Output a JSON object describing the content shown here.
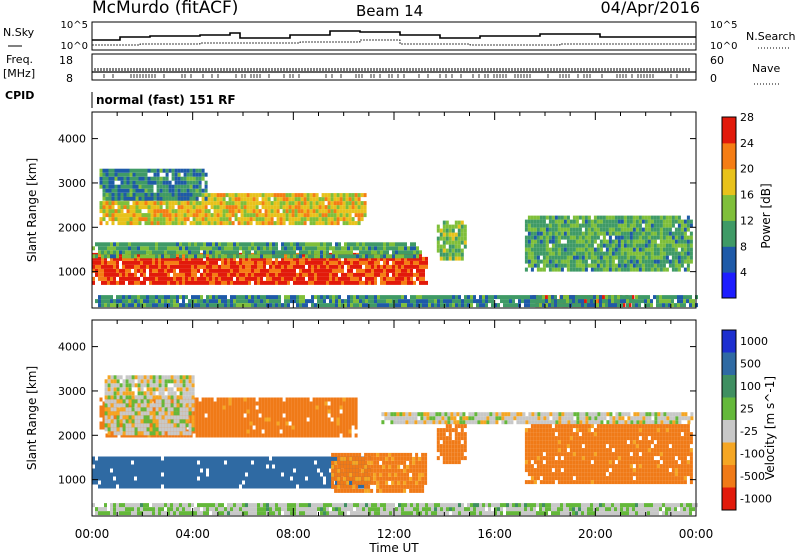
{
  "header": {
    "title": "McMurdo (fitACF)",
    "beam": "Beam 14",
    "date": "04/Apr/2016"
  },
  "panels": {
    "nsky": {
      "label": "N.Sky",
      "ticks": [
        "10^5",
        "10^0"
      ]
    },
    "nsearch": {
      "label": "N.Search",
      "ticks": [
        "10^5",
        "10^0"
      ]
    },
    "freq": {
      "label_line1": "Freq.",
      "label_line2": "[MHz]",
      "ticks": [
        "18",
        "8"
      ]
    },
    "nave": {
      "label": "Nave",
      "ticks": [
        "60",
        "0"
      ]
    },
    "cpid": {
      "label": "CPID",
      "value": "normal (fast) 151 RF"
    }
  },
  "chart_data": [
    {
      "type": "heatmap",
      "title": "",
      "xlabel": "Time UT",
      "ylabel": "Slant Range [km]",
      "x_ticks": [
        "00:00",
        "04:00",
        "08:00",
        "12:00",
        "16:00",
        "20:00",
        "00:00"
      ],
      "xlim_hours": [
        0,
        24
      ],
      "y_ticks": [
        1000,
        2000,
        3000,
        4000
      ],
      "ylim": [
        180,
        4600
      ],
      "colorbar": {
        "label": "Power [dB]",
        "tick_labels": [
          "4",
          "8",
          "12",
          "16",
          "20",
          "24",
          "28"
        ],
        "range": [
          0,
          30
        ],
        "colors": [
          "#1d1dff",
          "#1e5aa8",
          "#3f9a66",
          "#7fbf3a",
          "#e8c21b",
          "#f57d14",
          "#e21a0b"
        ]
      },
      "regions": [
        {
          "t0": 0.0,
          "t1": 13.3,
          "r0": 700,
          "r1": 1400,
          "value": 27
        },
        {
          "t0": 0.0,
          "t1": 13.0,
          "r0": 1300,
          "r1": 1650,
          "value": 12
        },
        {
          "t0": 0.3,
          "t1": 10.8,
          "r0": 2050,
          "r1": 2700,
          "value": 19
        },
        {
          "t0": 0.3,
          "t1": 4.5,
          "r0": 2600,
          "r1": 3300,
          "value": 9
        },
        {
          "t0": 13.7,
          "t1": 14.8,
          "r0": 1250,
          "r1": 2150,
          "value": 14
        },
        {
          "t0": 17.2,
          "t1": 23.8,
          "r0": 1000,
          "r1": 2200,
          "value": 12
        },
        {
          "t0": 17.5,
          "t1": 21.5,
          "r0": 200,
          "r1": 420,
          "value": 28
        },
        {
          "t0": 0.0,
          "t1": 24.0,
          "r0": 200,
          "r1": 420,
          "value": 10
        }
      ]
    },
    {
      "type": "heatmap",
      "title": "",
      "xlabel": "Time UT",
      "ylabel": "Slant Range [km]",
      "x_ticks": [
        "00:00",
        "04:00",
        "08:00",
        "12:00",
        "16:00",
        "20:00",
        "00:00"
      ],
      "xlim_hours": [
        0,
        24
      ],
      "y_ticks": [
        1000,
        2000,
        3000,
        4000
      ],
      "ylim": [
        180,
        4600
      ],
      "colorbar": {
        "label": "Velocity [m s^-1]",
        "tick_labels": [
          "1000",
          "500",
          "100",
          "25",
          "-25",
          "-100",
          "-500",
          "-1000"
        ],
        "colors": [
          "#1d2fcf",
          "#2f6aa3",
          "#3f8f61",
          "#64b83a",
          "#c8c8c8",
          "#f5a623",
          "#f07a17",
          "#e21a0b"
        ]
      },
      "regions": [
        {
          "t0": 0.0,
          "t1": 11.0,
          "r0": 800,
          "r1": 1500,
          "value": 300
        },
        {
          "t0": 9.5,
          "t1": 13.3,
          "r0": 700,
          "r1": 1600,
          "value": -150
        },
        {
          "t0": 0.3,
          "t1": 10.5,
          "r0": 1950,
          "r1": 2800,
          "value": -200
        },
        {
          "t0": 0.5,
          "t1": 4.0,
          "r0": 2000,
          "r1": 3300,
          "value": 0
        },
        {
          "t0": 11.5,
          "t1": 23.8,
          "r0": 2250,
          "r1": 2500,
          "value": 0
        },
        {
          "t0": 13.7,
          "t1": 14.8,
          "r0": 1350,
          "r1": 2200,
          "value": -300
        },
        {
          "t0": 17.2,
          "t1": 23.8,
          "r0": 900,
          "r1": 2200,
          "value": -200
        },
        {
          "t0": 0.0,
          "t1": 24.0,
          "r0": 200,
          "r1": 420,
          "value": 20
        }
      ]
    }
  ]
}
